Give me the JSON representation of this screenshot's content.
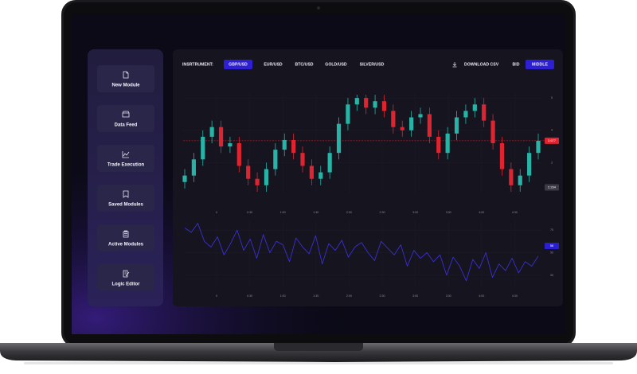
{
  "sidebar": {
    "items": [
      "New Module",
      "Data Feed",
      "Trade Execution",
      "Saved Modules",
      "Active Modules",
      "Logic Editor"
    ]
  },
  "toolbar": {
    "label": "INSRTRUMENT:",
    "instruments": [
      "GBP/USD",
      "EUR/USD",
      "BTC/USD",
      "GOLD/USD",
      "SILVER/USD"
    ],
    "active_instrument": 0,
    "download": "DOWNLOAD CSV",
    "modes": [
      "BID",
      "MIDDLE"
    ],
    "active_mode": 1
  },
  "chart_data": [
    {
      "type": "candlestick",
      "up_color": "#27b3a6",
      "down_color": "#e0242f",
      "open": [
        2.4,
        2.6,
        3.1,
        3.8,
        4.1,
        3.5,
        3.6,
        2.9,
        2.5,
        2.3,
        2.8,
        3.4,
        3.7,
        3.3,
        2.9,
        2.5,
        2.7,
        3.3,
        4.2,
        4.8,
        5.0,
        4.7,
        4.9,
        4.6,
        4.1,
        4.0,
        4.4,
        4.5,
        3.8,
        3.3,
        3.9,
        4.4,
        4.6,
        4.8,
        4.3,
        3.6,
        2.8,
        2.3,
        2.6,
        3.3
      ],
      "high": [
        2.8,
        3.3,
        4.0,
        4.3,
        4.3,
        3.8,
        3.8,
        3.1,
        2.7,
        3.0,
        3.6,
        3.9,
        3.9,
        3.5,
        3.1,
        2.9,
        3.5,
        4.4,
        5.0,
        5.1,
        5.1,
        5.1,
        5.1,
        4.8,
        4.3,
        4.6,
        4.7,
        4.7,
        4.0,
        4.1,
        4.6,
        4.8,
        5.0,
        5.0,
        4.5,
        3.8,
        3.0,
        2.8,
        3.5,
        3.9
      ],
      "low": [
        2.2,
        2.4,
        2.9,
        3.6,
        3.3,
        3.3,
        2.7,
        2.3,
        2.1,
        2.1,
        2.6,
        3.2,
        3.1,
        2.7,
        2.3,
        2.3,
        2.5,
        3.1,
        4.0,
        4.6,
        4.5,
        4.5,
        4.4,
        3.9,
        3.8,
        3.8,
        4.2,
        3.6,
        3.1,
        3.1,
        3.7,
        4.2,
        4.4,
        4.1,
        3.4,
        2.6,
        2.1,
        2.1,
        2.4,
        3.1
      ],
      "close": [
        2.6,
        3.1,
        3.8,
        4.1,
        3.5,
        3.6,
        2.9,
        2.5,
        2.3,
        2.8,
        3.4,
        3.7,
        3.3,
        2.9,
        2.5,
        2.7,
        3.3,
        4.2,
        4.8,
        5.0,
        4.7,
        4.9,
        4.6,
        4.1,
        4.0,
        4.4,
        4.5,
        3.8,
        3.3,
        3.9,
        4.4,
        4.6,
        4.8,
        4.3,
        3.6,
        2.8,
        2.3,
        2.6,
        3.3,
        3.677
      ],
      "ylim": [
        2,
        5.2
      ],
      "yticks": [
        3,
        4,
        5
      ],
      "xtick_labels": [
        "0",
        "0:30",
        "1:00",
        "1:30",
        "2:00",
        "2:30",
        "3:00",
        "3:30",
        "4:00",
        "4:30"
      ],
      "markers": [
        {
          "value": 3.677,
          "color": "#e0242f"
        },
        {
          "value": 2.234,
          "color": "#3b3a46"
        }
      ],
      "grid": true
    },
    {
      "type": "line",
      "color": "#3a2fd6",
      "values": [
        72,
        68,
        76,
        60,
        55,
        64,
        48,
        58,
        70,
        52,
        62,
        45,
        66,
        50,
        60,
        57,
        42,
        63,
        55,
        49,
        65,
        40,
        58,
        52,
        61,
        46,
        55,
        59,
        50,
        43,
        60,
        54,
        48,
        57,
        38,
        52,
        45,
        50,
        42,
        48,
        30,
        46,
        38,
        25,
        44,
        36,
        50,
        28,
        40,
        34,
        45,
        32,
        42,
        38,
        47
      ],
      "ylim": [
        20,
        80
      ],
      "yticks": [
        30,
        50,
        70
      ],
      "xtick_labels": [
        "0",
        "0:30",
        "1:00",
        "1:30",
        "2:00",
        "2:30",
        "3:00",
        "3:30",
        "4:00",
        "4:30"
      ],
      "markers": [
        {
          "value": 56,
          "color": "#2a1fd0"
        }
      ],
      "grid": true
    }
  ]
}
